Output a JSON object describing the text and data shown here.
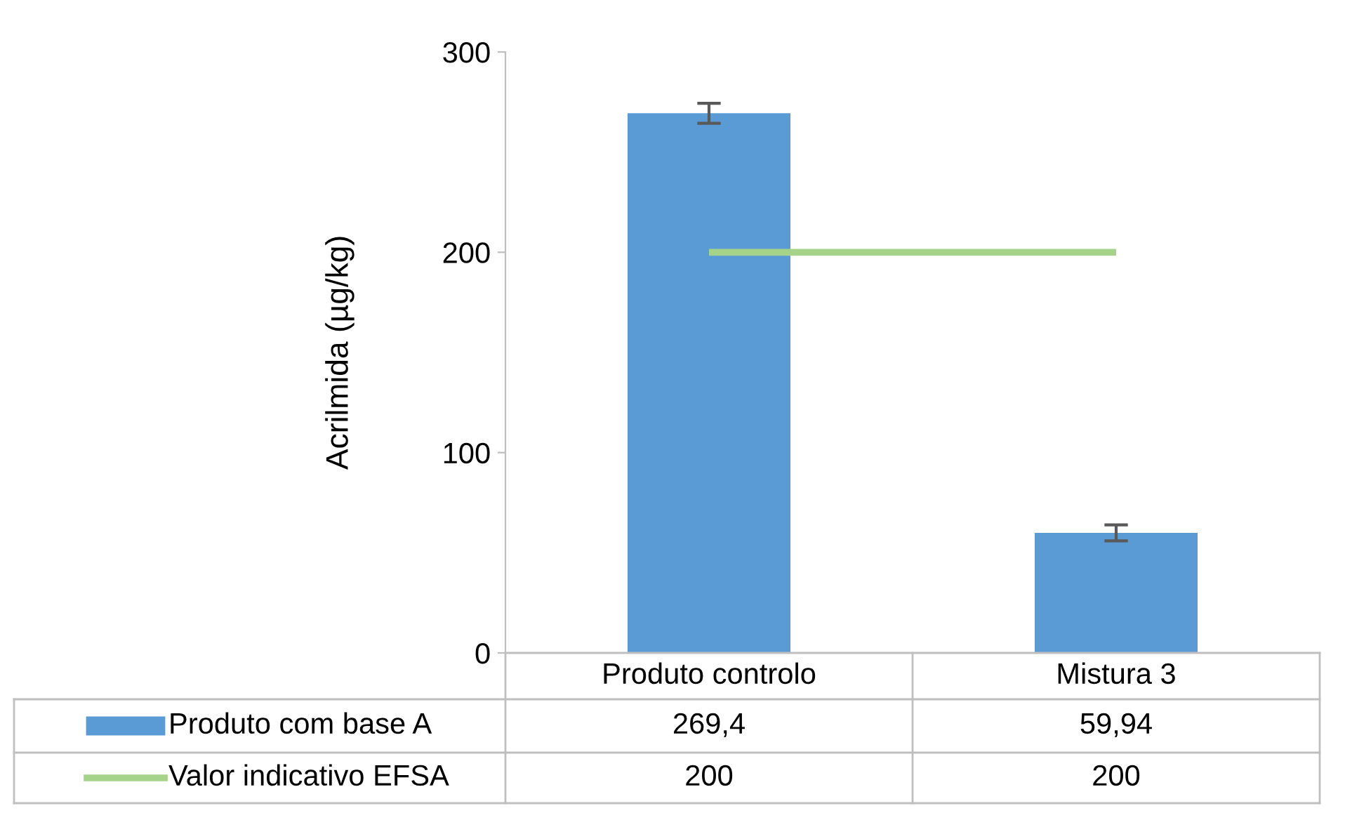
{
  "chart_data": {
    "type": "bar",
    "ylabel": "Acrilmida (µg/kg)",
    "categories": [
      "Produto controlo",
      "Mistura 3"
    ],
    "series": [
      {
        "name": "Produto com base A",
        "color": "#5b9bd5",
        "values": [
          269.4,
          59.94
        ],
        "errors": [
          5,
          4
        ],
        "value_labels": [
          "269,4",
          "59,94"
        ]
      },
      {
        "name": "Valor indicativo EFSA",
        "type": "line",
        "color": "#a6d38a",
        "values": [
          200,
          200
        ],
        "value_labels": [
          "200",
          "200"
        ]
      }
    ],
    "ylim": [
      0,
      300
    ],
    "yticks": [
      0,
      100,
      200,
      300
    ],
    "grid": false,
    "legend": "bottom"
  }
}
